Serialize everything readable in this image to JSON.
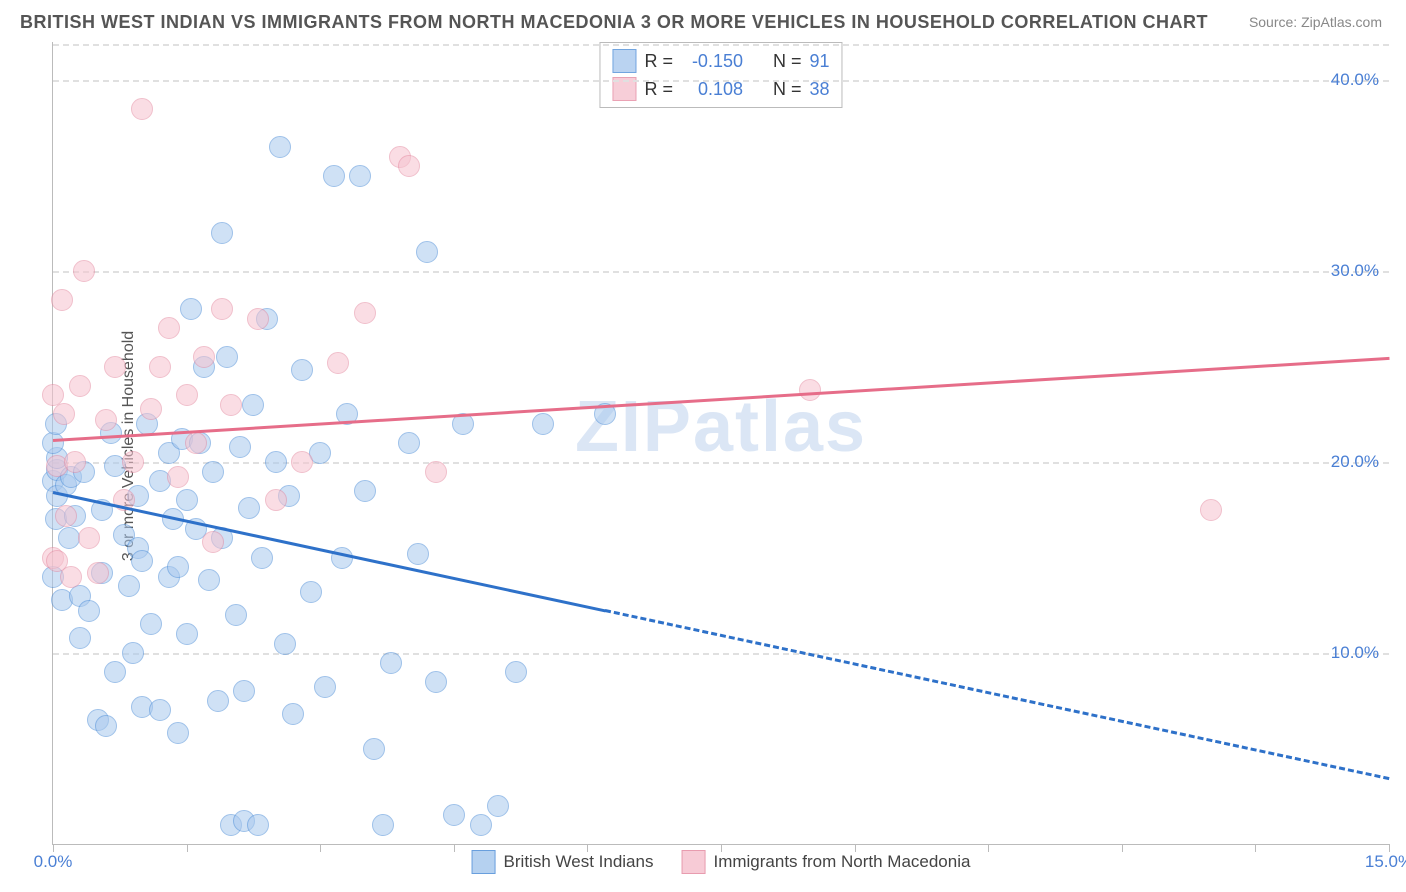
{
  "title": "BRITISH WEST INDIAN VS IMMIGRANTS FROM NORTH MACEDONIA 3 OR MORE VEHICLES IN HOUSEHOLD CORRELATION CHART",
  "source_label": "Source: ",
  "source_value": "ZipAtlas.com",
  "ylabel": "3 or more Vehicles in Household",
  "watermark": "ZIPatlas",
  "watermark_sub": "",
  "chart": {
    "type": "scatter",
    "background_color": "#ffffff",
    "grid_color": "#e0e0e0",
    "axis_color": "#bbbbbb",
    "xlim": [
      0,
      15
    ],
    "ylim": [
      0,
      42
    ],
    "y_ticks": [
      10,
      20,
      30,
      40
    ],
    "y_tick_labels": [
      "10.0%",
      "20.0%",
      "30.0%",
      "40.0%"
    ],
    "y_tick_color": "#4a7fd4",
    "x_tick_positions": [
      0,
      1.5,
      3,
      4.5,
      6,
      7.5,
      9,
      10.5,
      12,
      13.5,
      15
    ],
    "x_tick_labels_shown": [
      {
        "pos": 0,
        "label": "0.0%"
      },
      {
        "pos": 15,
        "label": "15.0%"
      }
    ],
    "series": [
      {
        "name": "British West Indians",
        "fill_color": "#a9c9ee",
        "stroke_color": "#4f8fd8",
        "fill_opacity": 0.55,
        "marker_radius": 11,
        "stroke_width": 1.5,
        "regression": {
          "color": "#2e71c9",
          "width": 3,
          "start": [
            0,
            18.5
          ],
          "end": [
            15,
            3.5
          ],
          "solid_until_x": 6.2
        },
        "R_label": "R = ",
        "R_value": "-0.150",
        "N_label": "N = ",
        "N_value": "91",
        "points": [
          [
            0.0,
            19.0
          ],
          [
            0.05,
            18.2
          ],
          [
            0.05,
            19.6
          ],
          [
            0.0,
            14.0
          ],
          [
            0.03,
            17.0
          ],
          [
            0.05,
            20.2
          ],
          [
            0.0,
            21.0
          ],
          [
            0.03,
            22.0
          ],
          [
            0.15,
            18.8
          ],
          [
            0.18,
            16.0
          ],
          [
            0.1,
            12.8
          ],
          [
            0.2,
            19.2
          ],
          [
            0.25,
            17.2
          ],
          [
            0.3,
            13.0
          ],
          [
            0.3,
            10.8
          ],
          [
            0.35,
            19.5
          ],
          [
            0.4,
            12.2
          ],
          [
            0.5,
            6.5
          ],
          [
            0.55,
            14.2
          ],
          [
            0.55,
            17.5
          ],
          [
            0.6,
            6.2
          ],
          [
            0.65,
            21.5
          ],
          [
            0.7,
            9.0
          ],
          [
            0.7,
            19.8
          ],
          [
            0.8,
            16.2
          ],
          [
            0.85,
            13.5
          ],
          [
            0.9,
            10.0
          ],
          [
            0.95,
            15.5
          ],
          [
            0.95,
            18.2
          ],
          [
            1.0,
            7.2
          ],
          [
            1.0,
            14.8
          ],
          [
            1.05,
            22.0
          ],
          [
            1.1,
            11.5
          ],
          [
            1.2,
            7.0
          ],
          [
            1.2,
            19.0
          ],
          [
            1.3,
            14.0
          ],
          [
            1.3,
            20.5
          ],
          [
            1.35,
            17.0
          ],
          [
            1.4,
            5.8
          ],
          [
            1.4,
            14.5
          ],
          [
            1.45,
            21.2
          ],
          [
            1.5,
            11.0
          ],
          [
            1.5,
            18.0
          ],
          [
            1.55,
            28.0
          ],
          [
            1.6,
            16.5
          ],
          [
            1.65,
            21.0
          ],
          [
            1.7,
            25.0
          ],
          [
            1.75,
            13.8
          ],
          [
            1.8,
            19.5
          ],
          [
            1.85,
            7.5
          ],
          [
            1.9,
            16.0
          ],
          [
            1.9,
            32.0
          ],
          [
            1.95,
            25.5
          ],
          [
            2.0,
            1.0
          ],
          [
            2.05,
            12.0
          ],
          [
            2.1,
            20.8
          ],
          [
            2.15,
            1.2
          ],
          [
            2.15,
            8.0
          ],
          [
            2.2,
            17.6
          ],
          [
            2.25,
            23.0
          ],
          [
            2.3,
            1.0
          ],
          [
            2.35,
            15.0
          ],
          [
            2.4,
            27.5
          ],
          [
            2.5,
            20.0
          ],
          [
            2.55,
            36.5
          ],
          [
            2.6,
            10.5
          ],
          [
            2.65,
            18.2
          ],
          [
            2.7,
            6.8
          ],
          [
            2.8,
            24.8
          ],
          [
            2.9,
            13.2
          ],
          [
            3.0,
            20.5
          ],
          [
            3.05,
            8.2
          ],
          [
            3.15,
            35.0
          ],
          [
            3.25,
            15.0
          ],
          [
            3.3,
            22.5
          ],
          [
            3.45,
            35.0
          ],
          [
            3.5,
            18.5
          ],
          [
            3.6,
            5.0
          ],
          [
            3.7,
            1.0
          ],
          [
            3.8,
            9.5
          ],
          [
            4.0,
            21.0
          ],
          [
            4.1,
            15.2
          ],
          [
            4.2,
            31.0
          ],
          [
            4.3,
            8.5
          ],
          [
            4.5,
            1.5
          ],
          [
            4.6,
            22.0
          ],
          [
            4.8,
            1.0
          ],
          [
            5.0,
            2.0
          ],
          [
            5.2,
            9.0
          ],
          [
            5.5,
            22.0
          ],
          [
            6.2,
            22.5
          ]
        ]
      },
      {
        "name": "Immigrants from North Macedonia",
        "fill_color": "#f6c3cf",
        "stroke_color": "#e58ba2",
        "fill_opacity": 0.55,
        "marker_radius": 11,
        "stroke_width": 1.5,
        "regression": {
          "color": "#e66d89",
          "width": 3,
          "start": [
            0,
            21.2
          ],
          "end": [
            15,
            25.5
          ],
          "solid_until_x": 15
        },
        "R_label": "R = ",
        "R_value": "0.108",
        "N_label": "N = ",
        "N_value": "38",
        "points": [
          [
            0.0,
            15.0
          ],
          [
            0.0,
            23.5
          ],
          [
            0.05,
            14.8
          ],
          [
            0.05,
            19.8
          ],
          [
            0.1,
            28.5
          ],
          [
            0.12,
            22.5
          ],
          [
            0.15,
            17.2
          ],
          [
            0.2,
            14.0
          ],
          [
            0.25,
            20.0
          ],
          [
            0.3,
            24.0
          ],
          [
            0.35,
            30.0
          ],
          [
            0.4,
            16.0
          ],
          [
            0.5,
            14.2
          ],
          [
            0.6,
            22.2
          ],
          [
            0.7,
            25.0
          ],
          [
            0.8,
            18.0
          ],
          [
            0.9,
            20.0
          ],
          [
            1.0,
            38.5
          ],
          [
            1.1,
            22.8
          ],
          [
            1.2,
            25.0
          ],
          [
            1.3,
            27.0
          ],
          [
            1.4,
            19.2
          ],
          [
            1.5,
            23.5
          ],
          [
            1.6,
            21.0
          ],
          [
            1.7,
            25.5
          ],
          [
            1.8,
            15.8
          ],
          [
            1.9,
            28.0
          ],
          [
            2.0,
            23.0
          ],
          [
            2.3,
            27.5
          ],
          [
            2.5,
            18.0
          ],
          [
            2.8,
            20.0
          ],
          [
            3.2,
            25.2
          ],
          [
            3.5,
            27.8
          ],
          [
            3.9,
            36.0
          ],
          [
            4.0,
            35.5
          ],
          [
            4.3,
            19.5
          ],
          [
            8.5,
            23.8
          ],
          [
            13.0,
            17.5
          ]
        ]
      }
    ],
    "legend_bottom": [
      {
        "swatch_fill": "#a9c9ee",
        "swatch_stroke": "#4f8fd8",
        "label": "British West Indians"
      },
      {
        "swatch_fill": "#f6c3cf",
        "swatch_stroke": "#e58ba2",
        "label": "Immigrants from North Macedonia"
      }
    ]
  }
}
